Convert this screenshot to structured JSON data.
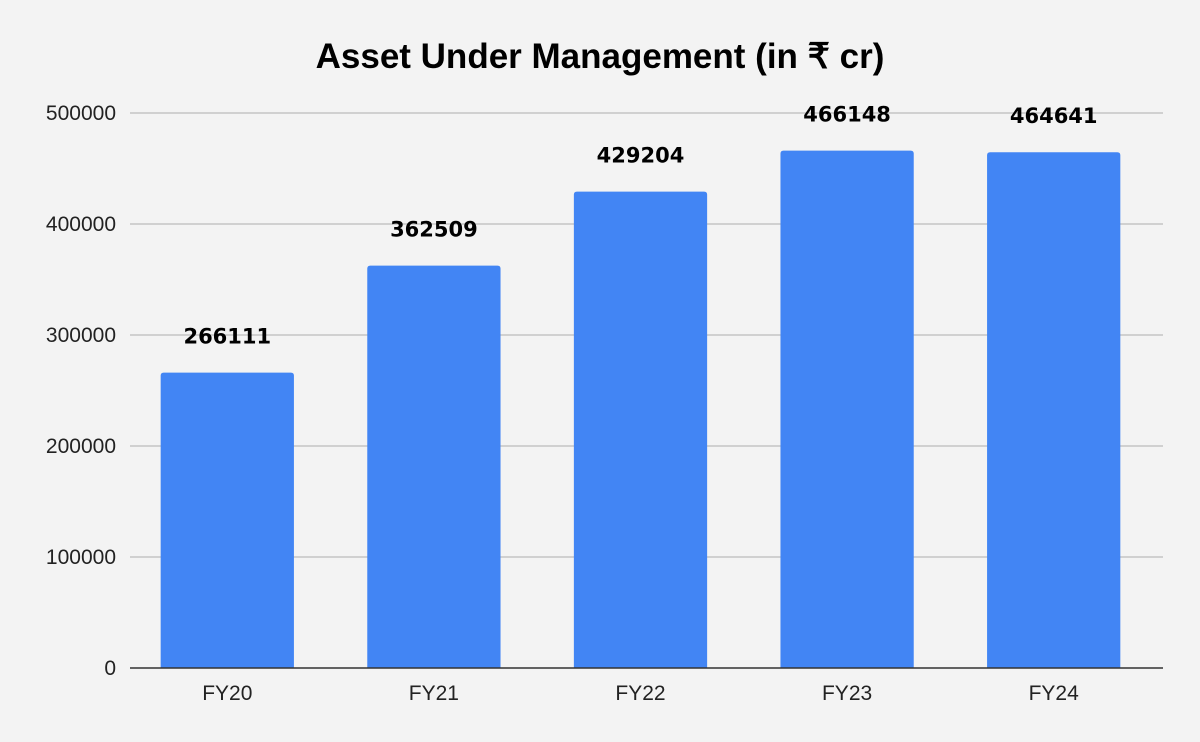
{
  "chart_data": {
    "type": "bar",
    "title": "Asset Under Management (in ₹ cr)",
    "xlabel": "",
    "ylabel": "",
    "categories": [
      "FY20",
      "FY21",
      "FY22",
      "FY23",
      "FY24"
    ],
    "series": [
      {
        "values": [
          266111,
          362509,
          429204,
          466148,
          464641
        ],
        "color": "#4285f4"
      }
    ],
    "data_labels": [
      "266111",
      "362509",
      "429204",
      "466148",
      "464641"
    ],
    "ylim": [
      0,
      500000
    ],
    "yticks": [
      0,
      100000,
      200000,
      300000,
      400000,
      500000
    ],
    "ytick_labels": [
      "0",
      "100000",
      "200000",
      "300000",
      "400000",
      "500000"
    ],
    "grid": true,
    "legend": "none"
  }
}
